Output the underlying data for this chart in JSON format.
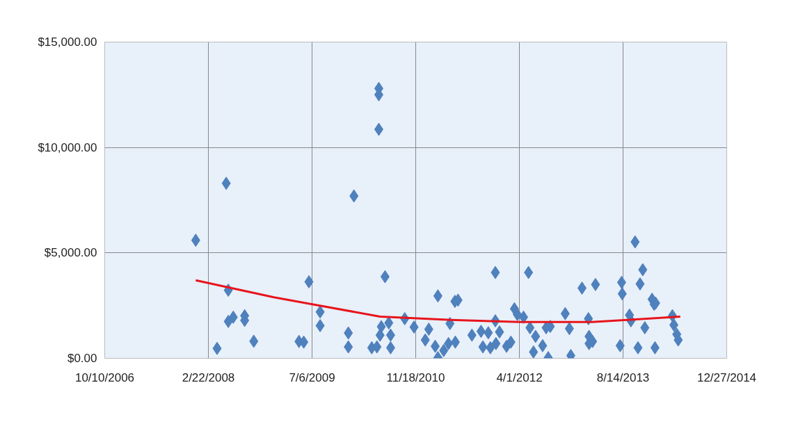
{
  "chart_data": {
    "type": "scatter",
    "grid": true,
    "xlim": [
      "2006-10-10",
      "2014-12-27"
    ],
    "ylim": [
      0,
      15000
    ],
    "xticks": [
      {
        "value": "2006-10-10",
        "label": "10/10/2006"
      },
      {
        "value": "2008-02-22",
        "label": "2/22/2008"
      },
      {
        "value": "2009-07-06",
        "label": "7/6/2009"
      },
      {
        "value": "2010-11-18",
        "label": "11/18/2010"
      },
      {
        "value": "2012-04-01",
        "label": "4/1/2012"
      },
      {
        "value": "2013-08-14",
        "label": "8/14/2013"
      },
      {
        "value": "2014-12-27",
        "label": "12/27/2014"
      }
    ],
    "yticks": [
      {
        "value": 0,
        "label": "$0.00"
      },
      {
        "value": 5000,
        "label": "$5,000.00"
      },
      {
        "value": 10000,
        "label": "$10,000.00"
      },
      {
        "value": 15000,
        "label": "$15,000.00"
      }
    ],
    "series": [
      {
        "color": "#4f81bd",
        "marker": "diamond",
        "x": [
          "2007-12-23",
          "2008-04-04",
          "2008-05-18",
          "2008-05-28",
          "2008-05-28",
          "2008-06-21",
          "2008-08-15",
          "2008-08-15",
          "2008-09-28",
          "2009-05-04",
          "2009-05-27",
          "2009-06-21",
          "2009-08-14",
          "2009-08-14",
          "2009-12-28",
          "2009-12-28",
          "2010-01-24",
          "2010-04-20",
          "2010-05-24",
          "2010-05-24",
          "2010-05-24",
          "2010-05-15",
          "2010-05-30",
          "2010-06-05",
          "2010-06-23",
          "2010-07-11",
          "2010-07-20",
          "2010-07-20",
          "2010-09-26",
          "2010-11-10",
          "2011-01-03",
          "2011-01-20",
          "2011-02-20",
          "2011-03-05",
          "2011-03-05",
          "2011-04-02",
          "2011-04-25",
          "2011-05-02",
          "2011-05-26",
          "2011-06-10",
          "2011-05-28",
          "2011-08-16",
          "2011-09-29",
          "2011-10-08",
          "2011-11-03",
          "2011-11-13",
          "2011-12-07",
          "2011-12-07",
          "2011-12-10",
          "2011-12-27",
          "2012-01-30",
          "2012-02-20",
          "2012-03-08",
          "2012-03-22",
          "2012-04-21",
          "2012-05-15",
          "2012-05-22",
          "2012-06-08",
          "2012-06-18",
          "2012-07-22",
          "2012-08-08",
          "2012-08-18",
          "2012-08-28",
          "2012-11-08",
          "2012-11-28",
          "2012-12-05",
          "2013-01-28",
          "2013-02-28",
          "2013-03-03",
          "2013-03-03",
          "2013-03-20",
          "2013-04-03",
          "2013-07-31",
          "2013-08-07",
          "2013-08-10",
          "2013-09-14",
          "2013-09-21",
          "2013-10-11",
          "2013-10-25",
          "2013-11-04",
          "2013-11-17",
          "2013-11-27",
          "2014-01-01",
          "2014-01-11",
          "2014-01-18",
          "2014-01-15",
          "2014-04-09",
          "2014-04-16",
          "2014-04-30",
          "2014-05-07"
        ],
        "values": [
          5600,
          470,
          8300,
          3230,
          1750,
          1950,
          2020,
          1800,
          810,
          800,
          770,
          3630,
          2200,
          1550,
          540,
          1200,
          7700,
          500,
          12800,
          12500,
          10860,
          540,
          1100,
          1500,
          3870,
          1680,
          500,
          1100,
          1880,
          1480,
          870,
          1380,
          570,
          30,
          2960,
          370,
          700,
          1650,
          2700,
          2760,
          770,
          1100,
          1280,
          540,
          1210,
          500,
          1780,
          4070,
          700,
          1250,
          570,
          770,
          2350,
          2080,
          1950,
          4070,
          1450,
          300,
          1040,
          600,
          1450,
          30,
          1510,
          2120,
          1410,
          130,
          3330,
          1880,
          1040,
          700,
          800,
          3500,
          600,
          3600,
          3060,
          2050,
          1780,
          5520,
          500,
          3530,
          4200,
          1450,
          2800,
          2560,
          2620,
          500,
          2020,
          1580,
          1140,
          870
        ]
      },
      {
        "type": "line",
        "color": "#e8141b",
        "x": [
          "2007-12-23",
          "2009-01-04",
          "2009-07-07",
          "2010-05-30",
          "2011-05-06",
          "2012-04-01",
          "2013-03-17",
          "2013-09-03",
          "2014-05-17"
        ],
        "values": [
          3700,
          2890,
          2560,
          1980,
          1820,
          1720,
          1720,
          1820,
          1980
        ]
      }
    ]
  }
}
